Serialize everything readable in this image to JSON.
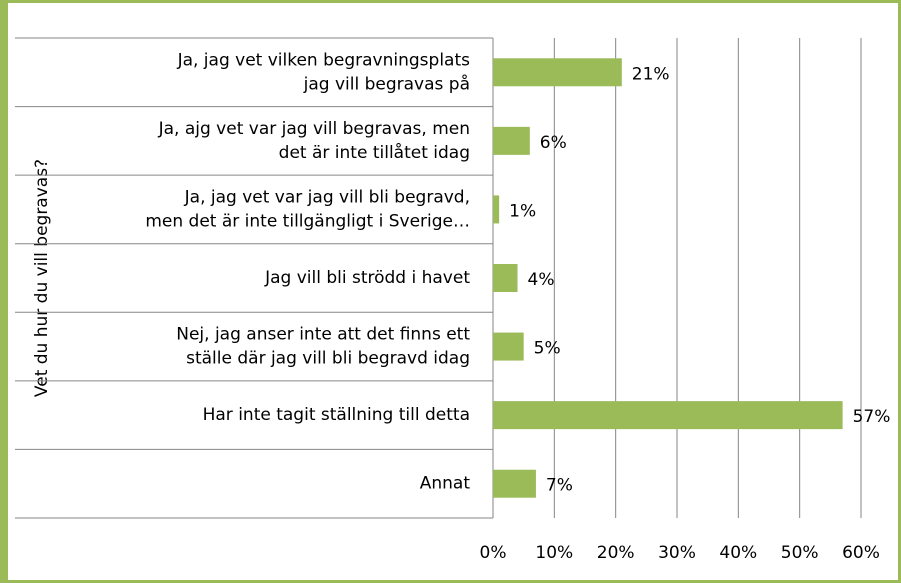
{
  "chart_data": {
    "type": "bar",
    "orientation": "horizontal",
    "y_axis_label": "Vet du hur du vill begravas?",
    "categories": [
      "Ja, jag vet vilken begravningsplats\njag vill begravas på",
      "Ja, ajg vet var jag vill begravas, men\ndet är inte tillåtet idag",
      "Ja, jag vet var jag vill bli begravd,\nmen det är inte tillgängligt i Sverige…",
      "Jag vill bli strödd i havet",
      "Nej, jag anser inte att det finns ett\nställe där jag vill bli begravd idag",
      "Har inte tagit ställning till detta",
      "Annat"
    ],
    "values": [
      21,
      6,
      1,
      4,
      5,
      57,
      7
    ],
    "value_labels": [
      "21%",
      "6%",
      "1%",
      "4%",
      "5%",
      "57%",
      "7%"
    ],
    "color": "#9bbb59",
    "xlim": [
      0,
      60
    ],
    "xticks": [
      {
        "value": 0,
        "label": "0%"
      },
      {
        "value": 10,
        "label": "10%"
      },
      {
        "value": 20,
        "label": "20%"
      },
      {
        "value": 30,
        "label": "30%"
      },
      {
        "value": 40,
        "label": "40%"
      },
      {
        "value": 50,
        "label": "50%"
      },
      {
        "value": 60,
        "label": "60%"
      }
    ],
    "grid": true
  }
}
